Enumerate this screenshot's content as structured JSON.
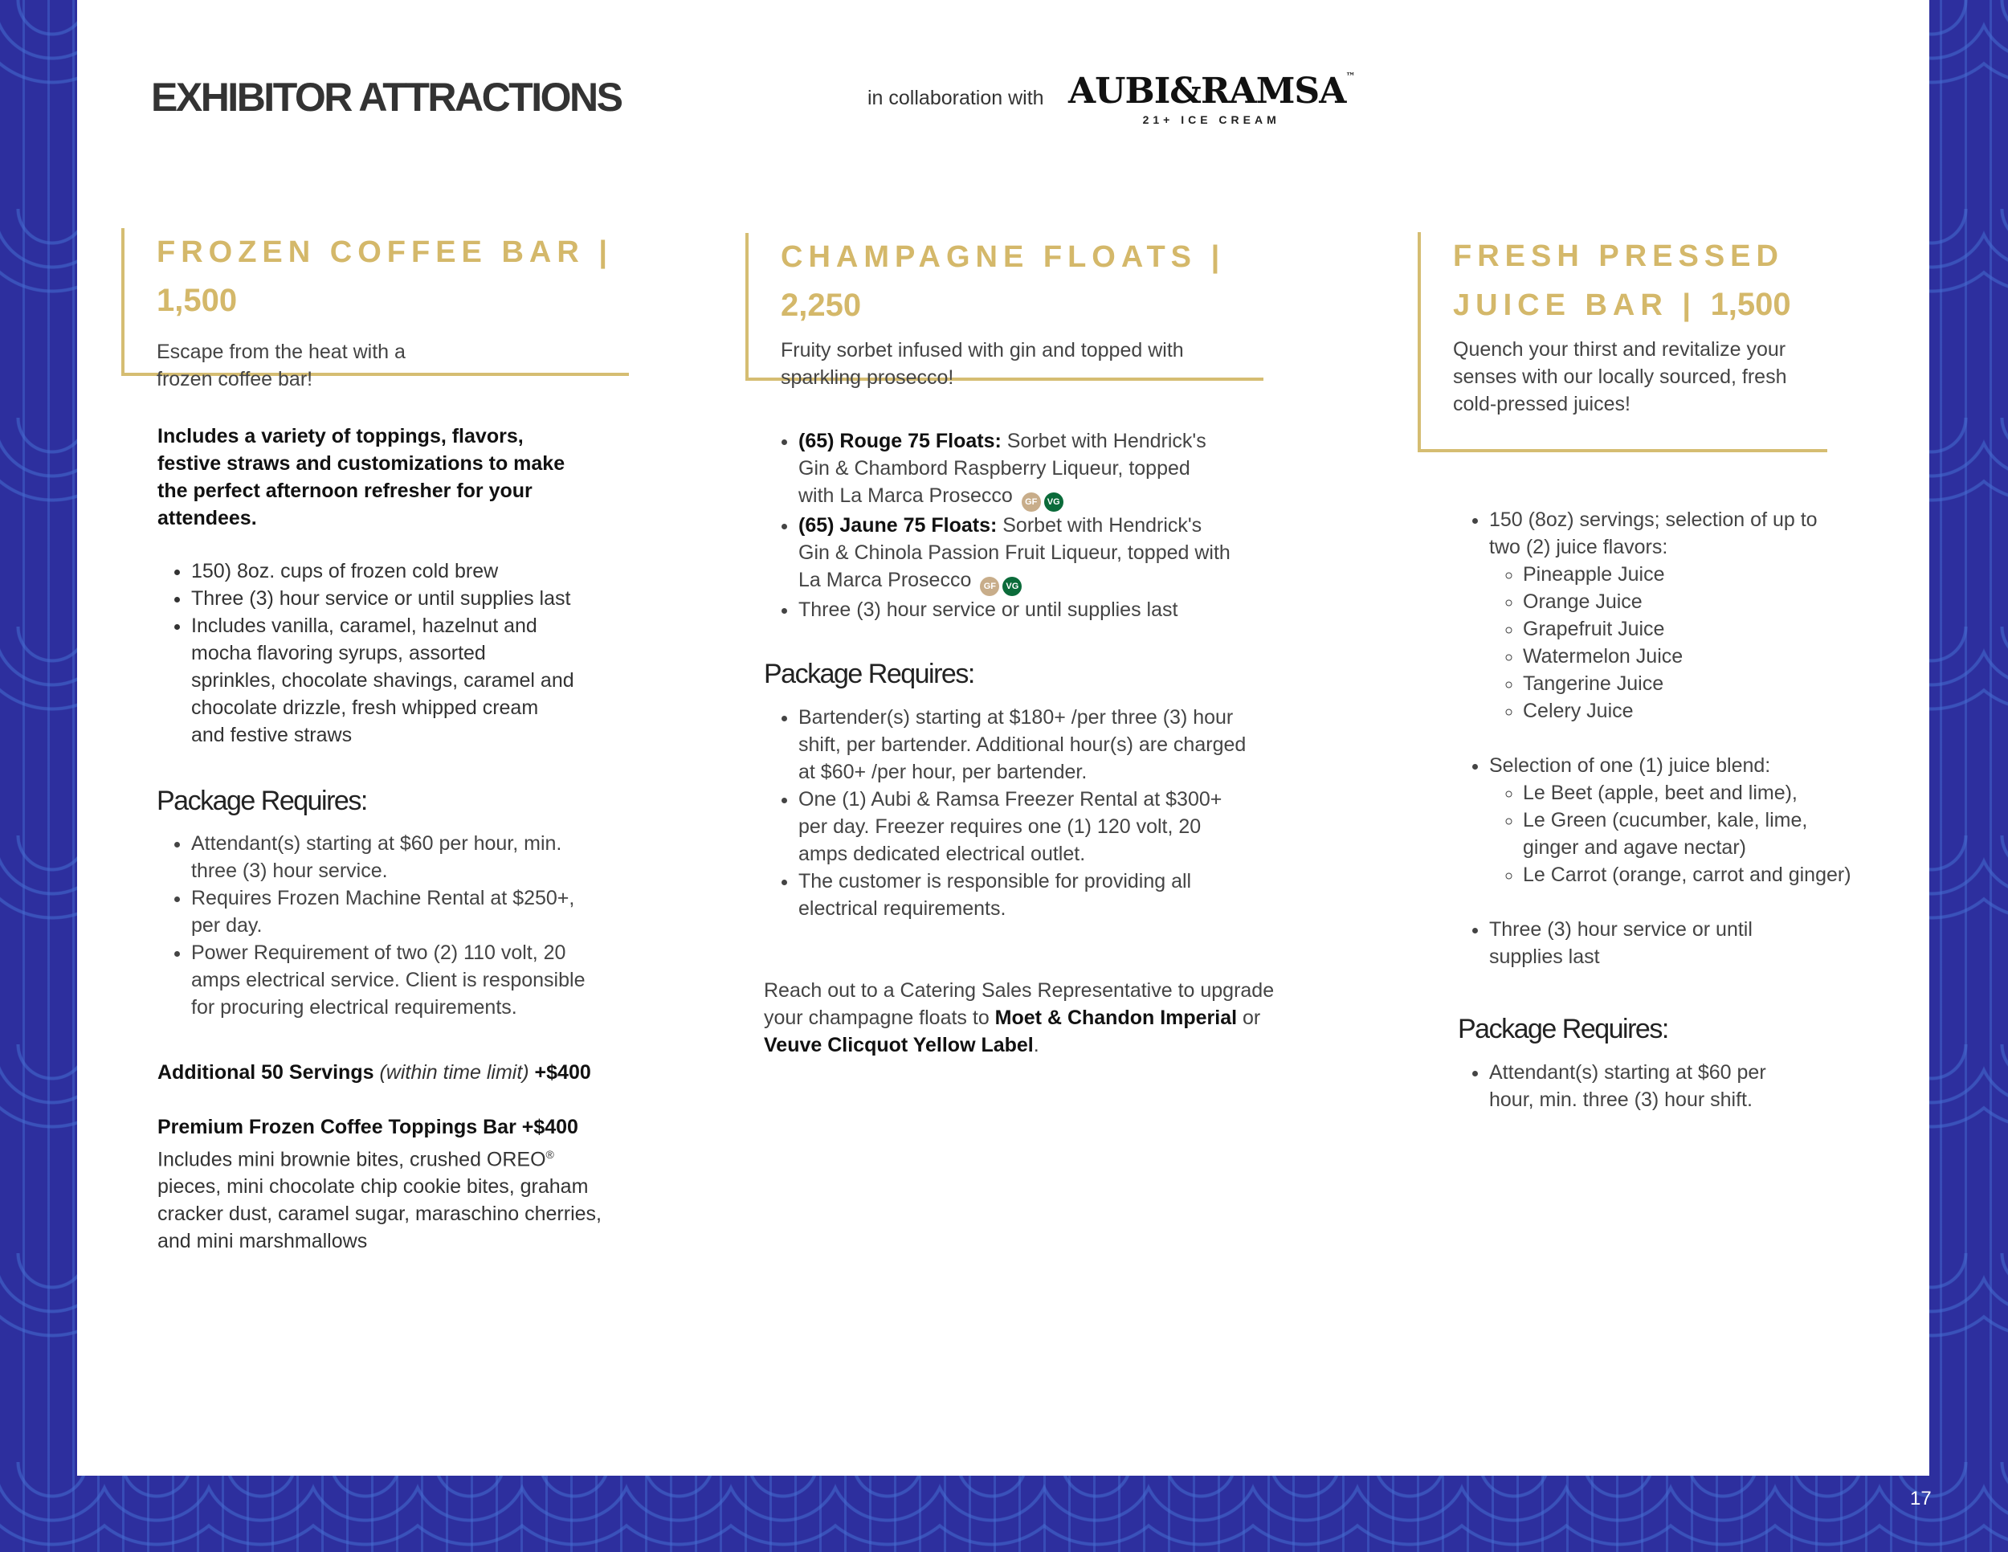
{
  "header": {
    "title": "EXHIBITOR ATTRACTIONS",
    "collab": "in collaboration with",
    "logo_brand": "AUBI&RAMSA",
    "logo_tm": "™",
    "logo_sub": "21+ ICE CREAM"
  },
  "col1": {
    "title": "FROZEN COFFEE BAR |",
    "price": "1,500",
    "desc": "Escape from the heat with a frozen coffee bar!",
    "intro": "Includes a variety of toppings, flavors, festive straws and customizations to make the perfect afternoon refresher for your attendees.",
    "items": [
      "150) 8oz. cups of frozen cold brew",
      "Three (3) hour service or until supplies last",
      "Includes vanilla, caramel, hazelnut and mocha flavoring syrups, assorted sprinkles, chocolate shavings, caramel and chocolate drizzle, fresh whipped cream and festive straws"
    ],
    "req_title": "Package Requires:",
    "reqs": [
      "Attendant(s) starting at $60 per hour, min. three (3) hour service.",
      "Requires Frozen Machine Rental at $250+, per day.",
      "Power Requirement of two (2) 110 volt, 20 amps electrical service. Client is responsible for procuring electrical requirements."
    ],
    "add_bold": "Additional 50 Servings",
    "add_italic": "(within time limit)",
    "add_price": "+$400",
    "prem_title": "Premium Frozen Coffee Toppings Bar +$400",
    "prem_desc1": "Includes mini brownie bites, crushed OREO",
    "prem_reg": "®",
    "prem_desc2": " pieces, mini chocolate chip cookie bites, graham cracker dust, caramel sugar, maraschino cherries, and mini marshmallows"
  },
  "col2": {
    "title": "CHAMPAGNE FLOATS |",
    "price": "2,250",
    "desc": "Fruity sorbet infused with gin and topped with sparkling prosecco!",
    "items": [
      {
        "bold": "(65) Rouge 75 Floats:",
        "text": " Sorbet with Hendrick's Gin & Chambord Raspberry Liqueur, topped with La Marca Prosecco"
      },
      {
        "bold": "(65) Jaune 75 Floats:",
        "text": " Sorbet with Hendrick's Gin & Chinola Passion Fruit Liqueur, topped with La Marca Prosecco"
      }
    ],
    "item3": "Three (3) hour service or until supplies last",
    "badge_gf": "GF",
    "badge_vg": "VG",
    "badge_gf_color": "#c8ad8a",
    "badge_vg_color": "#0b6b3a",
    "req_title": "Package Requires:",
    "reqs": [
      "Bartender(s) starting at $180+ /per three (3) hour shift, per bartender. Additional hour(s) are charged at $60+ /per hour, per bartender.",
      "One (1) Aubi & Ramsa Freezer Rental at $300+ per day. Freezer requires one (1) 120 volt, 20 amps dedicated electrical outlet.",
      "The customer is responsible for providing all electrical requirements."
    ],
    "reach1": "Reach out to a Catering Sales Representative to upgrade your champagne floats to ",
    "reach_b1": "Moet & Chandon Imperial",
    "reach_or": " or ",
    "reach_b2": "Veuve Clicquot Yellow Label",
    "reach_end": "."
  },
  "col3": {
    "title1": "FRESH PRESSED",
    "title2": "JUICE BAR |",
    "price": "1,500",
    "desc": "Quench your thirst and revitalize your senses with our locally sourced, fresh cold-pressed  juices!",
    "item1": "150 (8oz) servings; selection of up to two (2) juice flavors:",
    "flavors": [
      "Pineapple Juice",
      "Orange Juice",
      "Grapefruit Juice",
      "Watermelon Juice",
      "Tangerine Juice",
      "Celery Juice"
    ],
    "item2": "Selection of one (1) juice blend:",
    "blends": [
      "Le Beet (apple, beet and lime),",
      "Le Green (cucumber, kale, lime, ginger and agave nectar)",
      "Le Carrot (orange, carrot and ginger)"
    ],
    "item3": "Three (3) hour service or until supplies last",
    "req_title": "Package Requires:",
    "reqs": [
      "Attendant(s) starting at $60 per hour, min. three (3) hour shift."
    ]
  },
  "page_number": "17",
  "colors": {
    "gold": "#d4b86a",
    "background": "#2d2f9e"
  }
}
